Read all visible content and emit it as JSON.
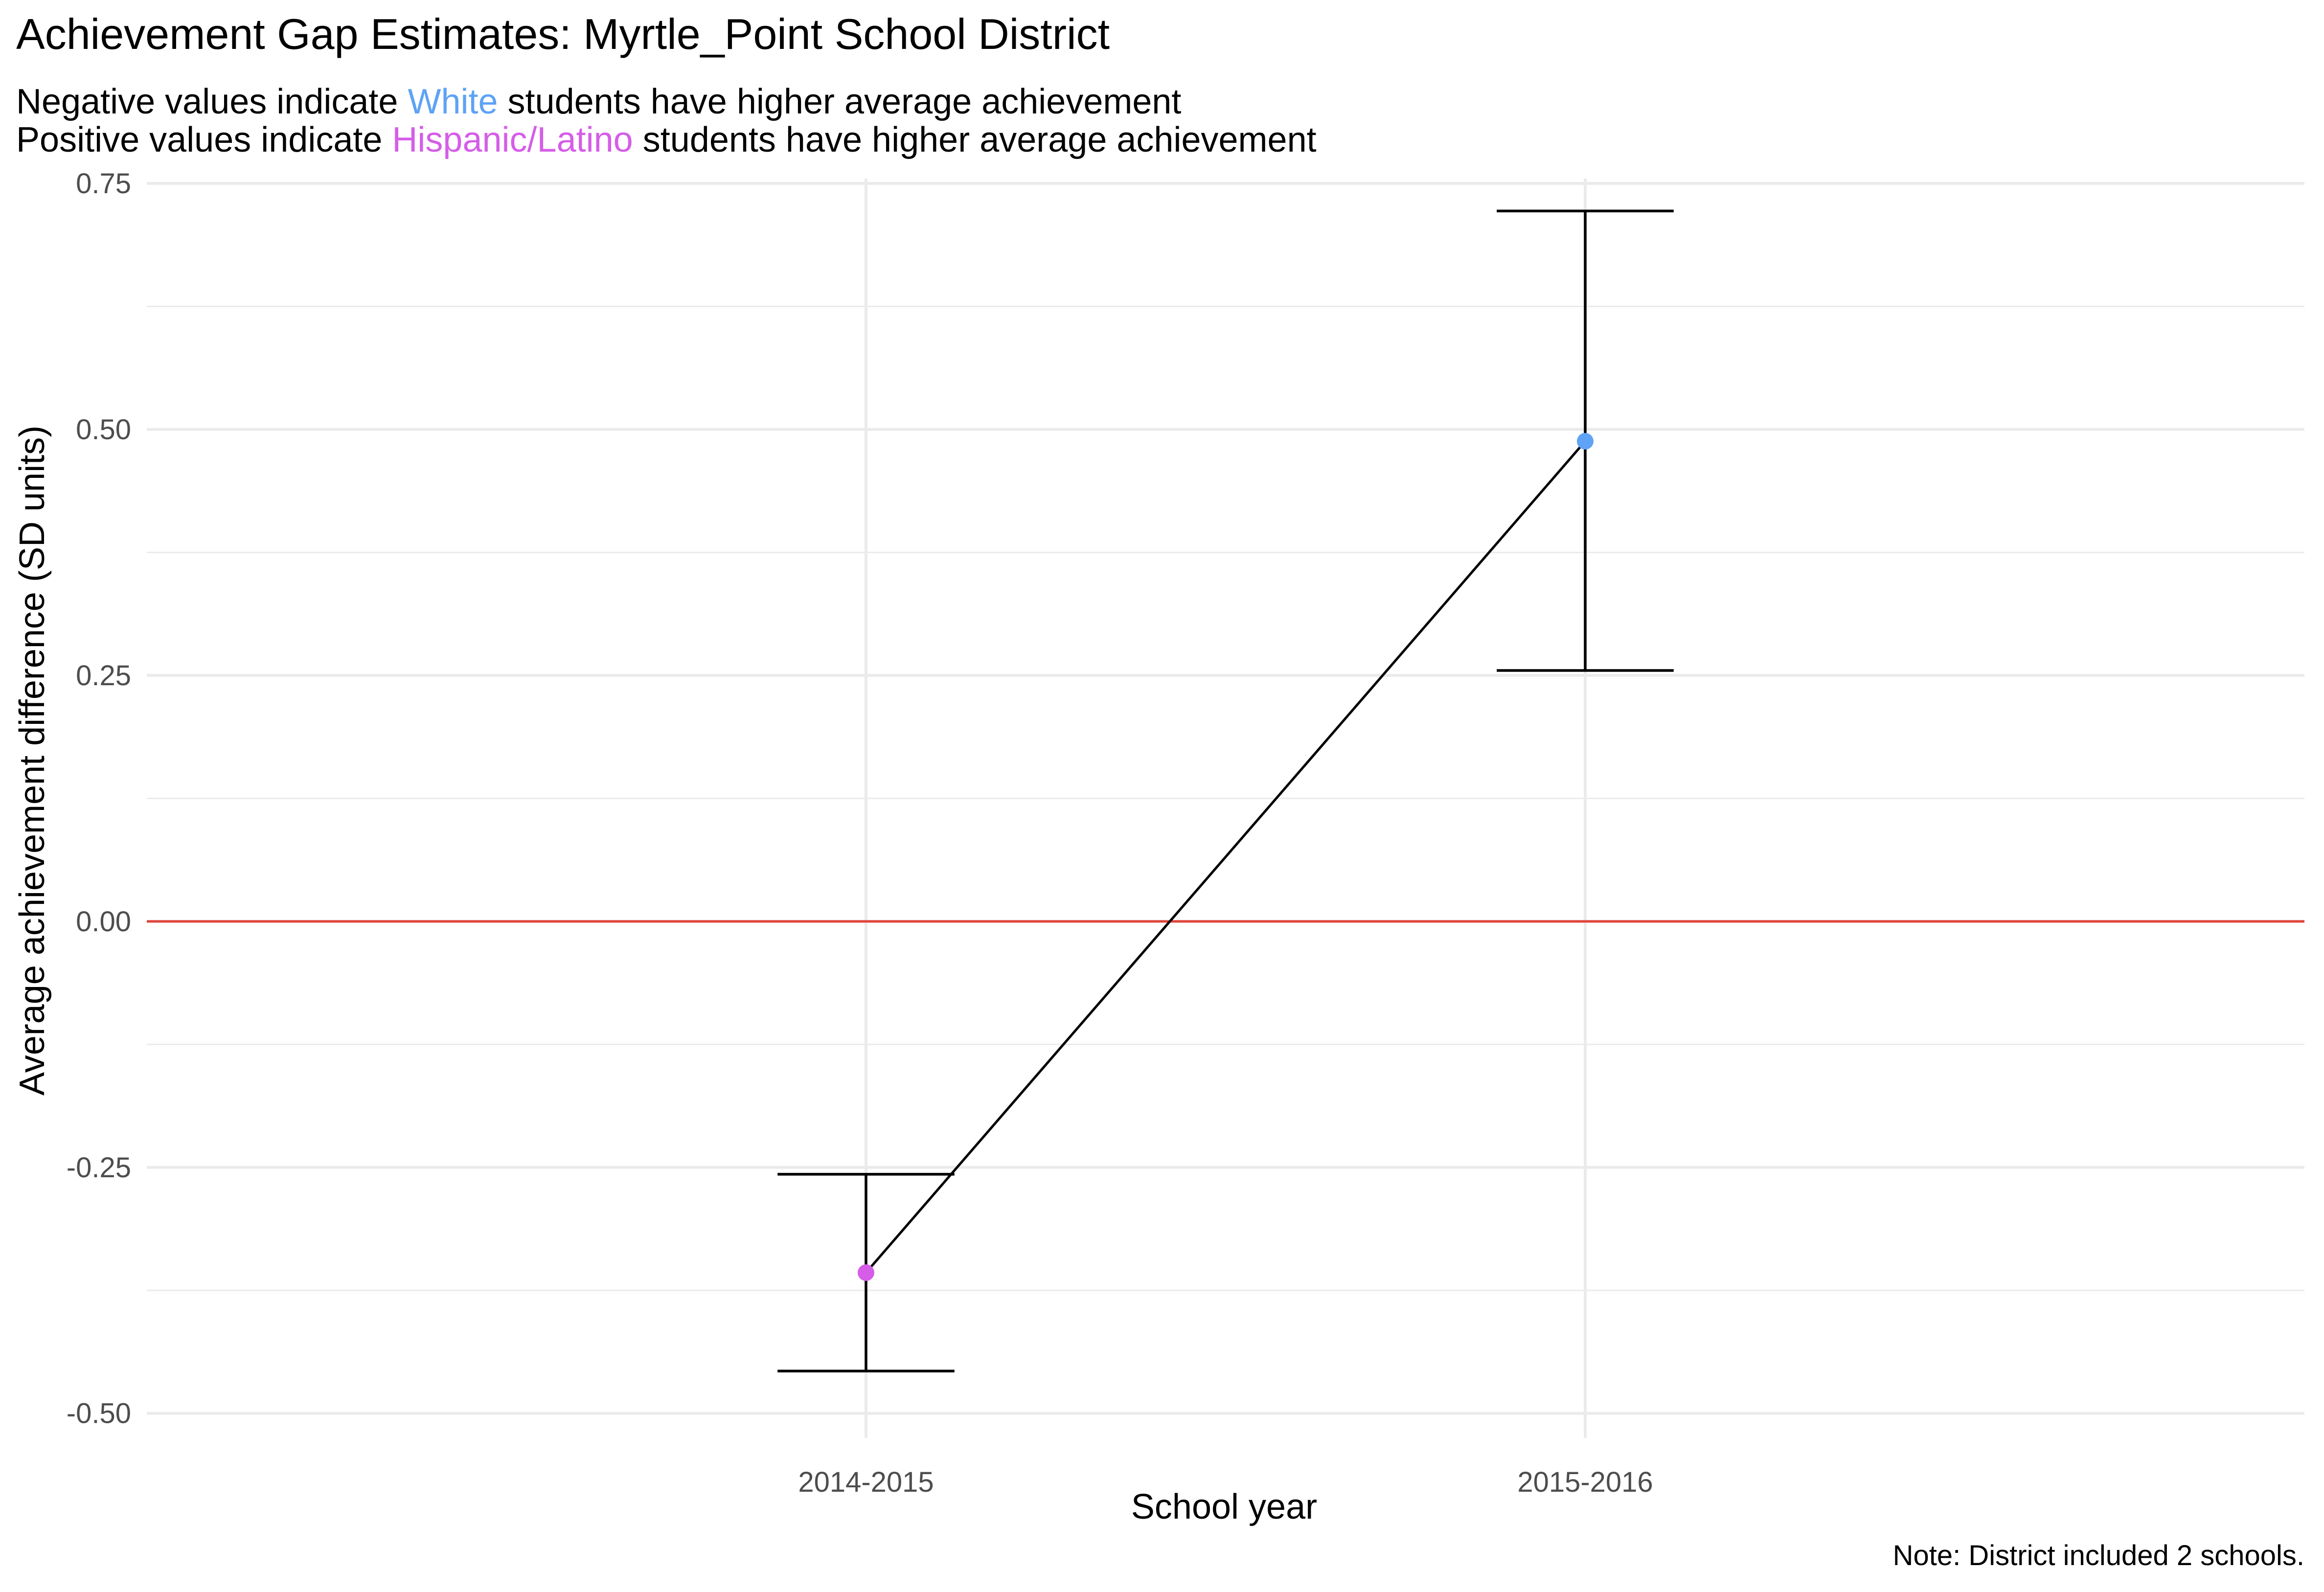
{
  "chart_data": {
    "type": "line",
    "title": "Achievement Gap Estimates: Myrtle_Point School District",
    "subtitle": {
      "line1": {
        "before": "Negative values indicate ",
        "group": "White",
        "after": " students have higher average achievement"
      },
      "line2": {
        "before": "Positive values indicate ",
        "group": "Hispanic/Latino",
        "after": " students have higher average achievement"
      }
    },
    "xlabel": "School year",
    "ylabel": "Average achievement difference (SD units)",
    "caption": "Note: District included 2 schools.",
    "categories": [
      "2014-2015",
      "2015-2016"
    ],
    "ylim": [
      -0.525,
      0.755
    ],
    "yticks": [
      -0.5,
      -0.25,
      0.0,
      0.25,
      0.5,
      0.75
    ],
    "ytick_labels": [
      "-0.50",
      "-0.25",
      "0.00",
      "0.25",
      "0.50",
      "0.75"
    ],
    "grid": true,
    "reference_line": {
      "y": 0,
      "color": "#E0443B"
    },
    "points": [
      {
        "x": "2014-2015",
        "y": -0.357,
        "lower": -0.457,
        "upper": -0.257,
        "color": "#D55DE8"
      },
      {
        "x": "2015-2016",
        "y": 0.488,
        "lower": 0.255,
        "upper": 0.722,
        "color": "#5EA3F5"
      }
    ],
    "colors": {
      "white": "#5EA3F5",
      "hispanic_latino": "#D55DE8",
      "line": "#000000",
      "gridline": "#EBEBEB",
      "axis_text": "#4D4D4D"
    }
  }
}
